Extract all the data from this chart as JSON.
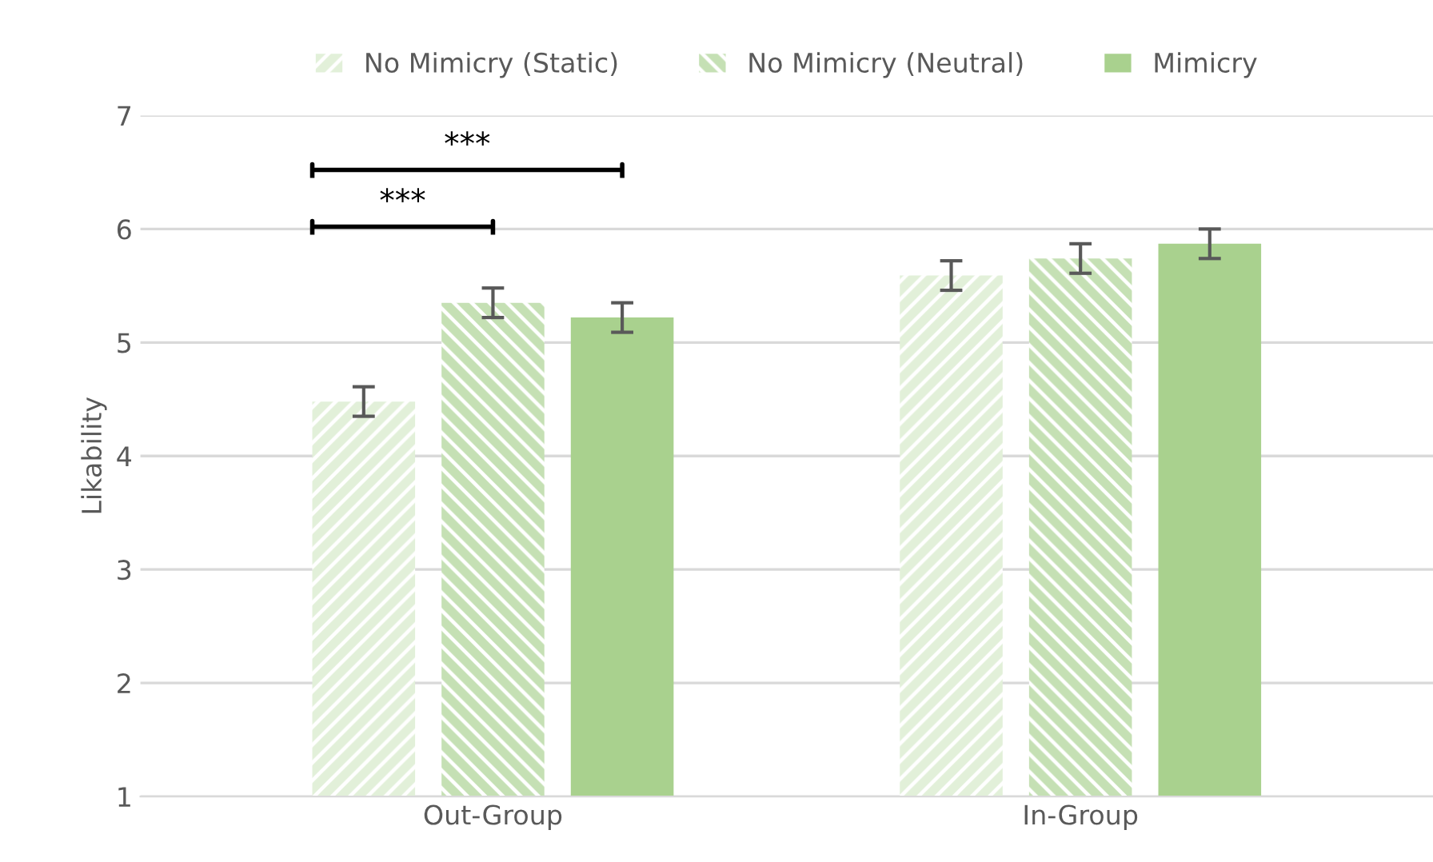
{
  "chart_data": {
    "type": "bar",
    "ylabel": "Likability",
    "categories": [
      "Out-Group",
      "In-Group"
    ],
    "series": [
      {
        "name": "No Mimicry (Static)",
        "color": "#e2f0d9",
        "values": [
          4.48,
          5.59
        ],
        "errors": [
          0.13,
          0.13
        ]
      },
      {
        "name": "No Mimicry (Neutral)",
        "color": "#c5e0b4",
        "values": [
          5.35,
          5.74
        ],
        "errors": [
          0.13,
          0.13
        ]
      },
      {
        "name": "Mimicry",
        "color": "#a9d18e",
        "values": [
          5.22,
          5.87
        ],
        "errors": [
          0.13,
          0.13
        ]
      }
    ],
    "ylim": [
      1,
      7
    ],
    "yticks": [
      1,
      2,
      3,
      4,
      5,
      6,
      7
    ],
    "grid": "y",
    "legend": "top",
    "annotations": [
      "***",
      "***"
    ]
  }
}
